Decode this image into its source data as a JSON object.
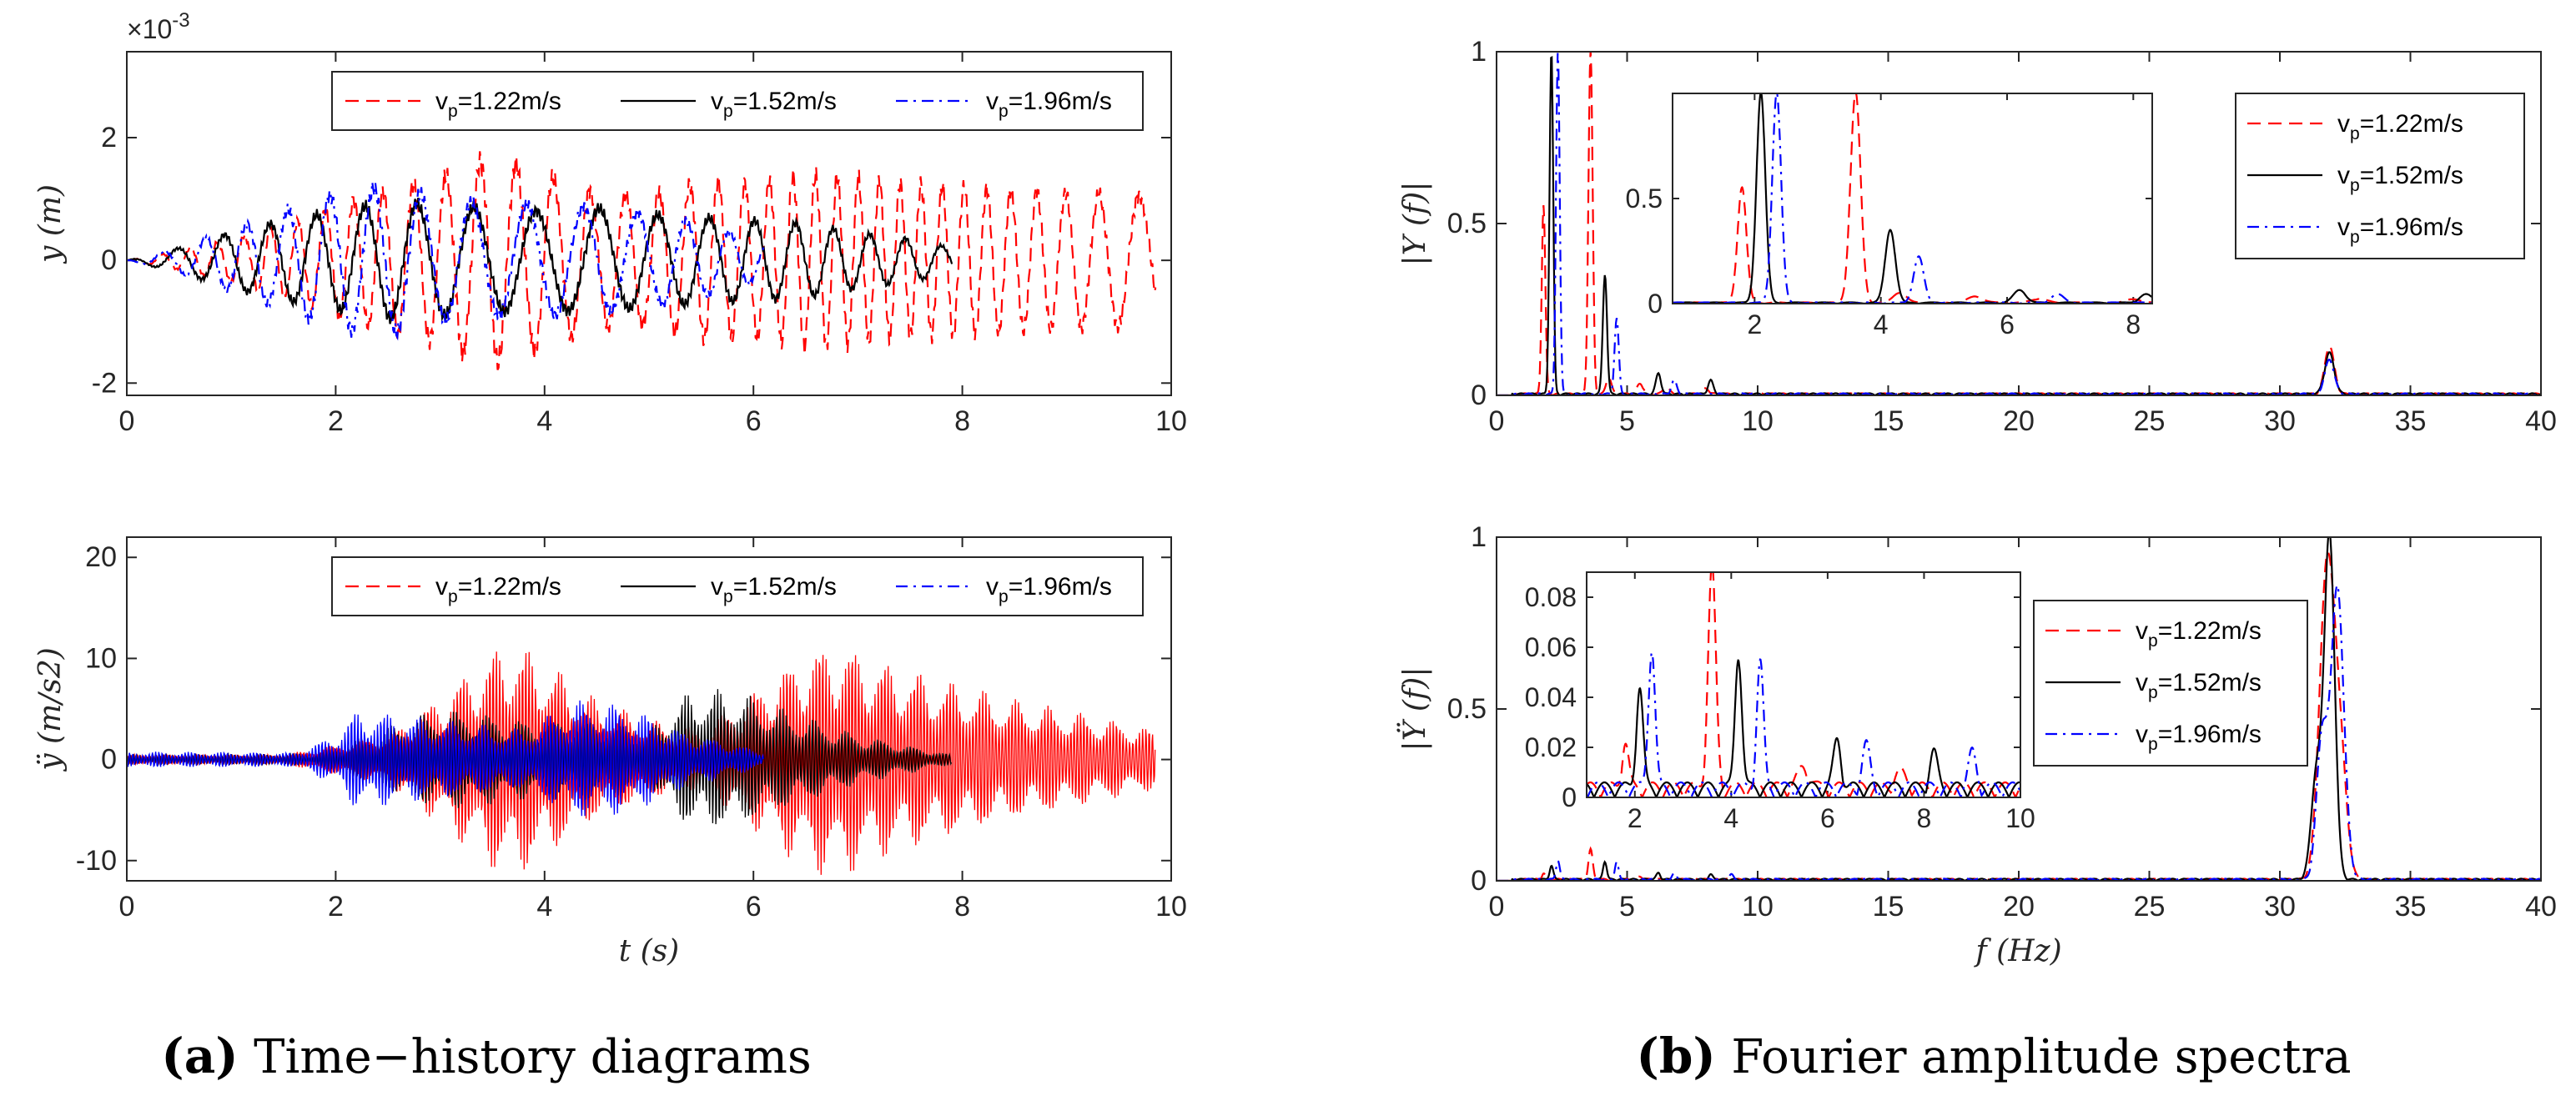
{
  "chart_data": [
    {
      "id": "a1",
      "type": "line",
      "ylabel": "y (m)",
      "xlabel": "",
      "xlim": [
        0,
        10
      ],
      "ylim": [
        -2.2,
        3.4
      ],
      "y_multiplier": "×10-3",
      "xticks": [
        0,
        2,
        4,
        6,
        8,
        10
      ],
      "yticks": [
        -2,
        0,
        2
      ],
      "legend_position": "top-right",
      "legend_layout": "horizontal",
      "series": [
        {
          "name": "vp=1.22m/s",
          "color": "#ff0000",
          "style": "dashed",
          "t_end": 9.85,
          "envelope": [
            [
              0,
              0
            ],
            [
              0.5,
              0.15
            ],
            [
              1.0,
              0.35
            ],
            [
              1.5,
              0.55
            ],
            [
              2.0,
              0.9
            ],
            [
              2.5,
              1.15
            ],
            [
              3.0,
              1.35
            ],
            [
              3.5,
              1.7
            ],
            [
              4.0,
              1.4
            ],
            [
              4.5,
              1.1
            ],
            [
              5.0,
              1.05
            ],
            [
              5.5,
              1.3
            ],
            [
              6.0,
              1.25
            ],
            [
              6.5,
              1.4
            ],
            [
              7.0,
              1.35
            ],
            [
              7.5,
              1.25
            ],
            [
              8.0,
              1.2
            ],
            [
              8.5,
              1.15
            ],
            [
              9.0,
              1.1
            ],
            [
              9.85,
              1.05
            ]
          ],
          "frequency_hz": 3.6
        },
        {
          "name": "vp=1.52m/s",
          "color": "#000000",
          "style": "solid",
          "t_end": 7.9,
          "envelope": [
            [
              0,
              0
            ],
            [
              0.5,
              0.2
            ],
            [
              1.0,
              0.45
            ],
            [
              1.5,
              0.65
            ],
            [
              2.0,
              0.8
            ],
            [
              2.5,
              0.95
            ],
            [
              3.0,
              0.9
            ],
            [
              3.5,
              0.85
            ],
            [
              4.0,
              0.8
            ],
            [
              4.5,
              0.85
            ],
            [
              5.0,
              0.75
            ],
            [
              5.5,
              0.7
            ],
            [
              6.0,
              0.65
            ],
            [
              6.5,
              0.6
            ],
            [
              7.0,
              0.45
            ],
            [
              7.5,
              0.35
            ],
            [
              7.9,
              0.2
            ]
          ],
          "frequency_hz": 2.1
        },
        {
          "name": "vp=1.96m/s",
          "color": "#0000ff",
          "style": "dashdot",
          "t_end": 6.1,
          "envelope": [
            [
              0,
              0
            ],
            [
              0.5,
              0.2
            ],
            [
              1.0,
              0.5
            ],
            [
              1.5,
              0.8
            ],
            [
              2.0,
              1.1
            ],
            [
              2.5,
              1.2
            ],
            [
              3.0,
              1.0
            ],
            [
              3.5,
              0.9
            ],
            [
              4.0,
              0.9
            ],
            [
              4.5,
              0.85
            ],
            [
              5.0,
              0.75
            ],
            [
              5.5,
              0.6
            ],
            [
              6.1,
              0.3
            ]
          ],
          "frequency_hz": 2.35
        }
      ]
    },
    {
      "id": "a2",
      "type": "line",
      "ylabel": "ÿ (m/s2)",
      "xlabel": "t (s)",
      "xlim": [
        0,
        10
      ],
      "ylim": [
        -12,
        22
      ],
      "xticks": [
        0,
        2,
        4,
        6,
        8,
        10
      ],
      "yticks": [
        -10,
        0,
        10,
        20
      ],
      "legend_position": "top-right",
      "legend_layout": "horizontal",
      "series": [
        {
          "name": "vp=1.22m/s",
          "color": "#ff0000",
          "style": "dashed",
          "t_end": 9.85,
          "envelope": [
            [
              0,
              0.5
            ],
            [
              1.5,
              0.5
            ],
            [
              2.5,
              2.5
            ],
            [
              3.0,
              6.5
            ],
            [
              3.5,
              11
            ],
            [
              3.7,
              12
            ],
            [
              4.0,
              10
            ],
            [
              4.5,
              6
            ],
            [
              5.0,
              4
            ],
            [
              5.5,
              3
            ],
            [
              6.0,
              7
            ],
            [
              6.5,
              11
            ],
            [
              6.8,
              12
            ],
            [
              7.2,
              10
            ],
            [
              7.8,
              8
            ],
            [
              8.5,
              6
            ],
            [
              9.0,
              5
            ],
            [
              9.85,
              3
            ]
          ],
          "frequency_hz": 32
        },
        {
          "name": "vp=1.52m/s",
          "color": "#000000",
          "style": "solid",
          "t_end": 7.9,
          "envelope": [
            [
              0,
              0.5
            ],
            [
              1.8,
              0.6
            ],
            [
              2.2,
              2
            ],
            [
              2.8,
              4.5
            ],
            [
              3.2,
              5
            ],
            [
              3.8,
              4
            ],
            [
              4.5,
              4
            ],
            [
              5.0,
              3
            ],
            [
              5.4,
              7
            ],
            [
              5.8,
              7
            ],
            [
              6.3,
              5
            ],
            [
              7.0,
              2.5
            ],
            [
              7.9,
              0.5
            ]
          ],
          "frequency_hz": 32
        },
        {
          "name": "vp=1.96m/s",
          "color": "#0000ff",
          "style": "dashdot",
          "t_end": 6.1,
          "envelope": [
            [
              0,
              0.8
            ],
            [
              1.6,
              0.7
            ],
            [
              2.0,
              2.5
            ],
            [
              2.2,
              5
            ],
            [
              2.6,
              4.5
            ],
            [
              3.0,
              4
            ],
            [
              3.8,
              3
            ],
            [
              4.3,
              6
            ],
            [
              4.8,
              5.5
            ],
            [
              5.3,
              3
            ],
            [
              6.1,
              0.8
            ]
          ],
          "frequency_hz": 32
        }
      ]
    },
    {
      "id": "b1",
      "type": "line",
      "ylabel": "|Y (f)|",
      "xlabel": "",
      "xlim": [
        0,
        40
      ],
      "ylim": [
        0,
        1
      ],
      "xticks": [
        0,
        5,
        10,
        15,
        20,
        25,
        30,
        35,
        40
      ],
      "yticks": [
        0,
        0.5,
        1
      ],
      "legend_position": "top-right",
      "legend_layout": "vertical",
      "series": [
        {
          "name": "vp=1.22m/s",
          "color": "#ff0000",
          "style": "dashed",
          "peaks": [
            [
              1.8,
              0.55,
              0.07
            ],
            [
              3.6,
              1.0,
              0.08
            ],
            [
              4.3,
              0.05,
              0.1
            ],
            [
              5.5,
              0.03,
              0.12
            ],
            [
              6.5,
              0.02,
              0.12
            ],
            [
              8,
              0.015,
              0.15
            ],
            [
              31.9,
              0.14,
              0.18
            ]
          ]
        },
        {
          "name": "vp=1.52m/s",
          "color": "#000000",
          "style": "solid",
          "peaks": [
            [
              2.1,
              1.0,
              0.07
            ],
            [
              4.15,
              0.35,
              0.08
            ],
            [
              6.2,
              0.06,
              0.1
            ],
            [
              8.2,
              0.04,
              0.1
            ],
            [
              31.9,
              0.12,
              0.18
            ]
          ]
        },
        {
          "name": "vp=1.96m/s",
          "color": "#0000ff",
          "style": "dashdot",
          "peaks": [
            [
              2.35,
              1.0,
              0.07
            ],
            [
              4.6,
              0.22,
              0.08
            ],
            [
              6.8,
              0.04,
              0.1
            ],
            [
              31.9,
              0.1,
              0.18
            ]
          ]
        }
      ],
      "inset": {
        "xlim": [
          0.7,
          8.3
        ],
        "ylim": [
          0,
          1
        ],
        "xticks": [
          2,
          4,
          6,
          8
        ],
        "yticks": [
          0,
          0.5
        ]
      }
    },
    {
      "id": "b2",
      "type": "line",
      "ylabel": "|Ÿ (f)|",
      "xlabel": "f (Hz)",
      "xlim": [
        0,
        40
      ],
      "ylim": [
        0,
        1
      ],
      "xticks": [
        0,
        5,
        10,
        15,
        20,
        25,
        30,
        35,
        40
      ],
      "yticks": [
        0,
        0.5,
        1
      ],
      "legend_position": "middle-right",
      "legend_layout": "vertical",
      "series": [
        {
          "name": "vp=1.22m/s",
          "color": "#ff0000",
          "style": "dashed",
          "peaks": [
            [
              1.8,
              0.018,
              0.07
            ],
            [
              3.6,
              0.088,
              0.08
            ],
            [
              5.5,
              0.008,
              0.12
            ],
            [
              7.5,
              0.006,
              0.12
            ],
            [
              31.8,
              0.9,
              0.28
            ],
            [
              32.3,
              0.35,
              0.25
            ]
          ]
        },
        {
          "name": "vp=1.52m/s",
          "color": "#000000",
          "style": "solid",
          "peaks": [
            [
              2.1,
              0.04,
              0.07
            ],
            [
              4.15,
              0.054,
              0.07
            ],
            [
              6.2,
              0.019,
              0.08
            ],
            [
              8.2,
              0.014,
              0.08
            ],
            [
              31.9,
              1.0,
              0.2
            ],
            [
              31.4,
              0.3,
              0.2
            ]
          ]
        },
        {
          "name": "vp=1.96m/s",
          "color": "#0000ff",
          "style": "dashdot",
          "peaks": [
            [
              2.35,
              0.056,
              0.07
            ],
            [
              4.6,
              0.05,
              0.07
            ],
            [
              6.8,
              0.017,
              0.08
            ],
            [
              9.0,
              0.014,
              0.08
            ],
            [
              32.2,
              0.85,
              0.25
            ],
            [
              31.6,
              0.4,
              0.2
            ]
          ]
        }
      ],
      "inset": {
        "xlim": [
          1.0,
          10.0
        ],
        "ylim": [
          0,
          0.09
        ],
        "xticks": [
          2,
          4,
          6,
          8,
          10
        ],
        "yticks": [
          0,
          0.02,
          0.04,
          0.06,
          0.08
        ]
      }
    }
  ],
  "captions": {
    "a_label": "(a)",
    "a_text": "Time−history diagrams",
    "b_label": "(b)",
    "b_text": "Fourier amplitude spectra"
  }
}
